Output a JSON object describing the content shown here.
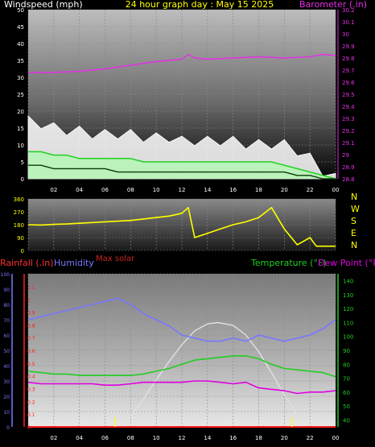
{
  "title": "24 hour graph day : May 15 2025",
  "colors": {
    "background": "#000000",
    "wind_avg": "#b9f2b9",
    "wind_gust": "#ffffff",
    "wind_mid": "#1fd11f",
    "barometer": "#e62ee6",
    "direction": "#ffff00",
    "rainfall": "#ff2020",
    "humidity": "#7777ff",
    "solar": "#e0e0e0",
    "temperature": "#22cc22",
    "dewpoint": "#e000e0",
    "axis_label": "#ffffff",
    "max_solar_label": "#cc2222"
  },
  "chart_data": [
    {
      "type": "line",
      "title": "24 hour graph day : May 15 2025",
      "ylabel_left": "Windspeed (mph)",
      "ylabel_right": "Barometer (.in)",
      "x_ticks": [
        "02",
        "04",
        "06",
        "08",
        "10",
        "12",
        "14",
        "16",
        "18",
        "20",
        "22",
        "00"
      ],
      "y_ticks_left": [
        "0",
        "5",
        "10",
        "15",
        "20",
        "25",
        "30",
        "35",
        "40",
        "45",
        "50"
      ],
      "y_ticks_right": [
        "28.8",
        "28.9",
        "29",
        "29.1",
        "29.2",
        "29.3",
        "29.4",
        "29.5",
        "29.6",
        "29.7",
        "29.8",
        "29.9",
        "30",
        "30.1",
        "30.2"
      ],
      "ylim_left": [
        0,
        50
      ],
      "ylim_right": [
        28.8,
        30.2
      ],
      "grid": true,
      "series": [
        {
          "name": "Barometer",
          "axis": "right",
          "x": [
            0,
            2,
            4,
            6,
            8,
            10,
            12,
            12.5,
            13,
            14,
            16,
            18,
            20,
            22,
            23,
            24
          ],
          "values": [
            29.68,
            29.68,
            29.69,
            29.71,
            29.74,
            29.77,
            29.79,
            29.83,
            29.8,
            29.79,
            29.8,
            29.81,
            29.8,
            29.81,
            29.83,
            29.82
          ]
        },
        {
          "name": "Wind gust",
          "axis": "left",
          "x": [
            0,
            1,
            2,
            3,
            4,
            5,
            6,
            7,
            8,
            9,
            10,
            11,
            12,
            13,
            14,
            15,
            16,
            17,
            18,
            19,
            20,
            21,
            22,
            23,
            24
          ],
          "values": [
            17,
            16,
            15,
            14,
            14,
            13,
            13,
            13,
            13,
            12,
            12,
            12,
            11,
            11,
            11,
            11,
            11,
            10,
            10,
            10,
            10,
            8,
            6,
            2,
            0
          ]
        },
        {
          "name": "Wind speed",
          "axis": "left",
          "x": [
            0,
            1,
            2,
            3,
            4,
            5,
            6,
            7,
            8,
            9,
            10,
            11,
            12,
            13,
            14,
            15,
            16,
            17,
            18,
            19,
            20,
            21,
            22,
            23,
            24
          ],
          "values": [
            8,
            8,
            7,
            7,
            6,
            6,
            6,
            6,
            6,
            5,
            5,
            5,
            5,
            5,
            5,
            5,
            5,
            5,
            5,
            5,
            4,
            3,
            2,
            1,
            0
          ]
        },
        {
          "name": "Wind average",
          "axis": "left",
          "x": [
            0,
            1,
            2,
            3,
            4,
            5,
            6,
            7,
            8,
            9,
            10,
            11,
            12,
            13,
            14,
            15,
            16,
            17,
            18,
            19,
            20,
            21,
            22,
            23,
            24
          ],
          "values": [
            4,
            4,
            3,
            3,
            3,
            3,
            3,
            2,
            2,
            2,
            2,
            2,
            2,
            2,
            2,
            2,
            2,
            2,
            2,
            2,
            2,
            1,
            1,
            0,
            0
          ]
        }
      ]
    },
    {
      "type": "line",
      "ylabel_left": "",
      "y_ticks_left": [
        "0",
        "90",
        "180",
        "270",
        "360"
      ],
      "direction_labels": [
        "N",
        "W",
        "S",
        "E",
        "N"
      ],
      "ylim": [
        0,
        360
      ],
      "series": [
        {
          "name": "Wind direction",
          "x": [
            0,
            1,
            2,
            3,
            4,
            5,
            6,
            7,
            8,
            9,
            10,
            11,
            12,
            12.5,
            13,
            14,
            15,
            16,
            17,
            18,
            19,
            20,
            21,
            22,
            22.5,
            23,
            24
          ],
          "values": [
            180,
            178,
            182,
            185,
            190,
            195,
            200,
            205,
            210,
            220,
            230,
            240,
            260,
            300,
            90,
            120,
            150,
            180,
            200,
            230,
            300,
            150,
            40,
            90,
            30,
            30,
            30
          ]
        }
      ]
    },
    {
      "type": "line",
      "ylabel_rainfall": "Rainfall (.in)",
      "ylabel_humidity": "Humidity",
      "label_max_solar": "Max solar",
      "ylabel_temperature": "Temperature (°F)",
      "ylabel_dewpoint": "Dew Point (°F)",
      "x_ticks": [
        "02",
        "04",
        "06",
        "08",
        "10",
        "12",
        "14",
        "16",
        "18",
        "20",
        "22",
        "00"
      ],
      "y_ticks_humidity": [
        "0",
        "10",
        "20",
        "30",
        "40",
        "50",
        "60",
        "70",
        "80",
        "90",
        "100"
      ],
      "y_ticks_rainfall": [
        "0",
        "0.1",
        "0.2",
        "0.3",
        "0.4",
        "0.5",
        "0.6",
        "0.7",
        "0.8",
        "0.9",
        "1",
        "1.1"
      ],
      "y_ticks_temperature": [
        "40",
        "50",
        "60",
        "70",
        "80",
        "90",
        "100",
        "110",
        "120",
        "130",
        "140"
      ],
      "ylim_humidity": [
        0,
        100
      ],
      "ylim_rainfall": [
        0,
        1.2
      ],
      "ylim_temperature": [
        35,
        145
      ],
      "grid": true,
      "series": [
        {
          "name": "Humidity",
          "axis": "humidity",
          "x": [
            0,
            1,
            2,
            3,
            4,
            5,
            6,
            7,
            8,
            9,
            10,
            11,
            12,
            13,
            14,
            15,
            16,
            17,
            18,
            19,
            20,
            21,
            22,
            23,
            24
          ],
          "values": [
            70,
            72,
            74,
            76,
            78,
            80,
            82,
            84,
            80,
            74,
            70,
            66,
            60,
            58,
            56,
            56,
            58,
            56,
            60,
            58,
            56,
            58,
            60,
            64,
            70
          ]
        },
        {
          "name": "Max solar",
          "axis": "temperature",
          "x": [
            7.3,
            8,
            9,
            10,
            11,
            12,
            13,
            14,
            14.8,
            16,
            17,
            18,
            19,
            20,
            21,
            21.7
          ],
          "values": [
            38,
            43,
            55,
            69,
            82,
            94,
            104,
            109,
            110,
            108,
            101,
            89,
            74,
            58,
            44,
            38
          ]
        },
        {
          "name": "Temperature",
          "axis": "temperature",
          "x": [
            0,
            1,
            2,
            3,
            4,
            5,
            6,
            7,
            8,
            9,
            10,
            11,
            12,
            13,
            14,
            15,
            16,
            17,
            18,
            19,
            20,
            21,
            22,
            23,
            24
          ],
          "values": [
            75,
            74,
            73,
            73,
            72,
            72,
            72,
            72,
            72,
            73,
            75,
            77,
            80,
            83,
            84,
            85,
            86,
            86,
            84,
            80,
            77,
            76,
            75,
            74,
            71
          ]
        },
        {
          "name": "Dew Point",
          "axis": "temperature",
          "x": [
            0,
            1,
            2,
            3,
            4,
            5,
            6,
            7,
            8,
            9,
            10,
            11,
            12,
            13,
            14,
            15,
            16,
            17,
            18,
            19,
            20,
            21,
            22,
            23,
            24
          ],
          "values": [
            67,
            66,
            66,
            66,
            66,
            66,
            65,
            65,
            66,
            67,
            67,
            67,
            67,
            68,
            68,
            67,
            66,
            67,
            63,
            62,
            61,
            59,
            60,
            60,
            61
          ]
        },
        {
          "name": "Rainfall",
          "axis": "rainfall",
          "x": [
            0,
            24
          ],
          "values": [
            0,
            0
          ]
        }
      ]
    }
  ]
}
